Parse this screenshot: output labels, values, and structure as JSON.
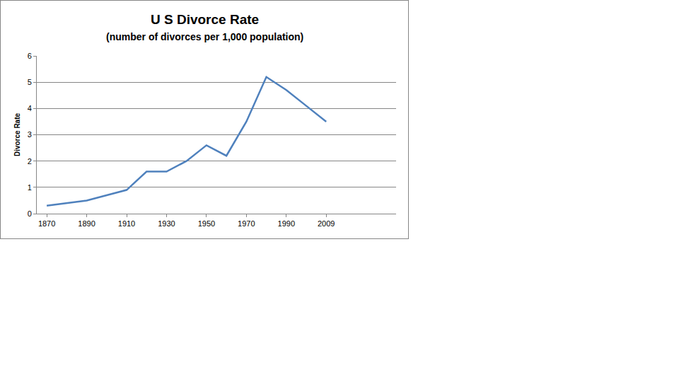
{
  "chart_data": {
    "type": "line",
    "title": "U S Divorce Rate",
    "subtitle": "(number of divorces per 1,000 population)",
    "y_label": "Divorce Rate",
    "categories": [
      "1870",
      null,
      "1890",
      null,
      "1910",
      null,
      "1930",
      null,
      "1950",
      null,
      "1970",
      null,
      "1990",
      null,
      "2009",
      null,
      null,
      null
    ],
    "values": [
      0.3,
      0.4,
      0.5,
      0.7,
      0.9,
      1.6,
      1.6,
      2.0,
      2.6,
      2.2,
      3.5,
      5.2,
      4.7,
      4.1,
      3.5,
      null,
      null,
      null
    ],
    "color": "#4f81bd",
    "ylim": [
      0,
      6
    ],
    "yticks": [
      0,
      1,
      2,
      3,
      4,
      5,
      6
    ],
    "grid": true
  }
}
